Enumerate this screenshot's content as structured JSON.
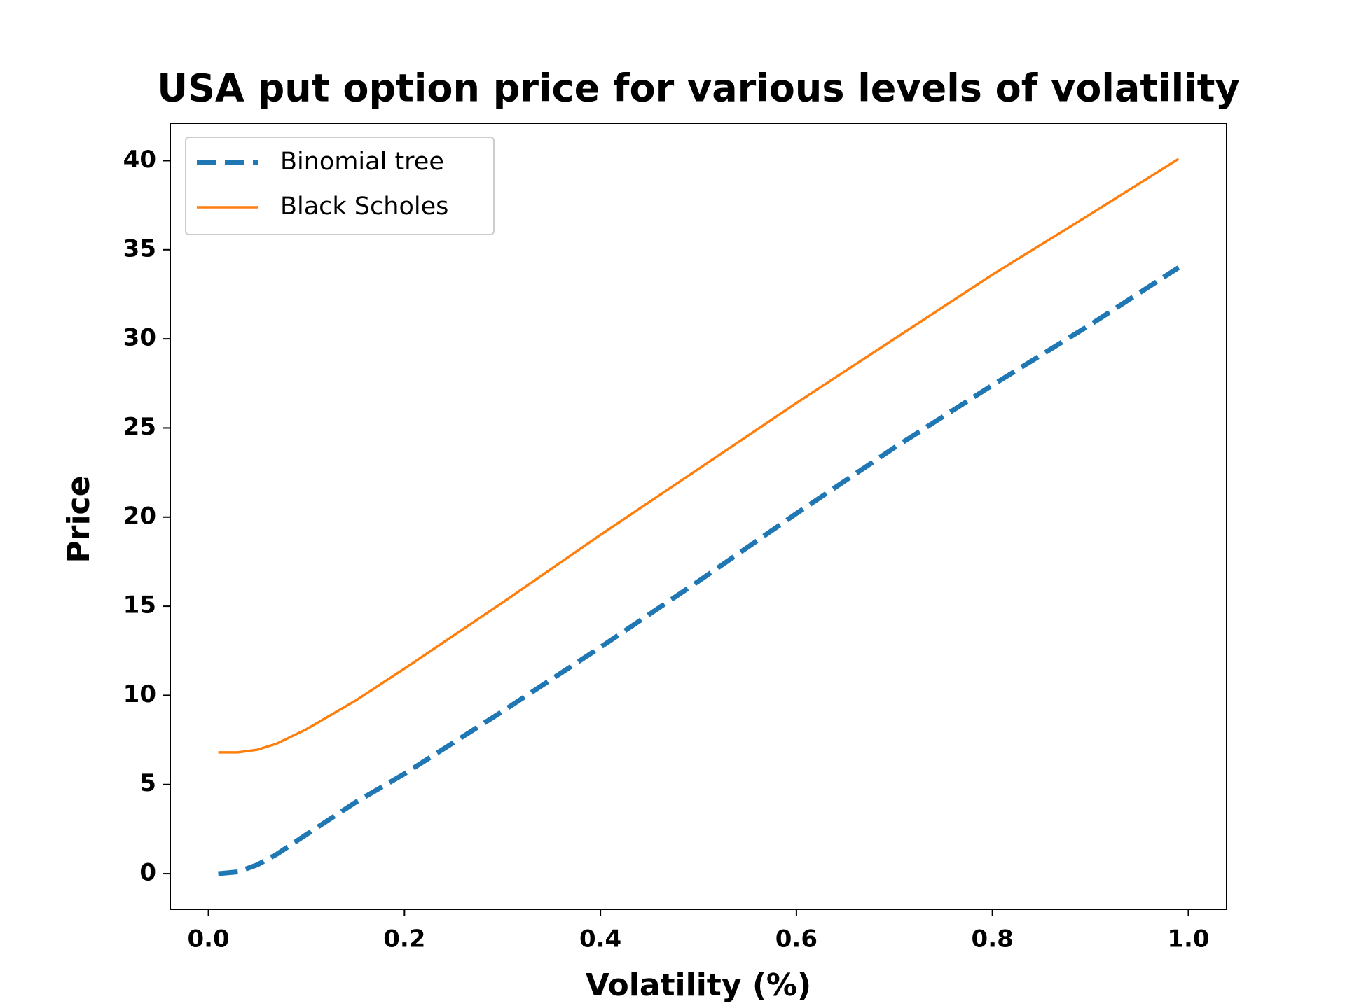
{
  "chart_data": {
    "type": "line",
    "title": "USA put option price for various levels of volatility",
    "x_label": "Volatility (%)",
    "y_label": "Price",
    "x": [
      0.01,
      0.03,
      0.05,
      0.07,
      0.1,
      0.15,
      0.2,
      0.3,
      0.4,
      0.5,
      0.6,
      0.7,
      0.8,
      0.9,
      0.99
    ],
    "series": [
      {
        "name": "Binomial tree",
        "color": "#1f77b4",
        "dashed": true,
        "values": [
          0,
          0.1,
          0.5,
          1.1,
          2.2,
          4.0,
          5.6,
          9.1,
          12.7,
          16.4,
          20.2,
          23.9,
          27.4,
          30.8,
          34.0
        ]
      },
      {
        "name": "Black Scholes",
        "color": "#ff7f0e",
        "dashed": false,
        "values": [
          6.8,
          6.8,
          6.95,
          7.3,
          8.1,
          9.7,
          11.5,
          15.2,
          19.0,
          22.7,
          26.4,
          30.0,
          33.6,
          37.0,
          40.1
        ]
      }
    ],
    "xlim": [
      -0.039,
      1.039
    ],
    "ylim": [
      -2.0,
      42.1
    ],
    "xticks": [
      {
        "value": 0,
        "label": "0.0"
      },
      0.2,
      0.4,
      0.6,
      0.8,
      {
        "value": 1,
        "label": "1.0"
      }
    ],
    "yticks": [
      0,
      5,
      10,
      15,
      20,
      25,
      30,
      35,
      40
    ],
    "legend": "upper left",
    "grid": false
  }
}
